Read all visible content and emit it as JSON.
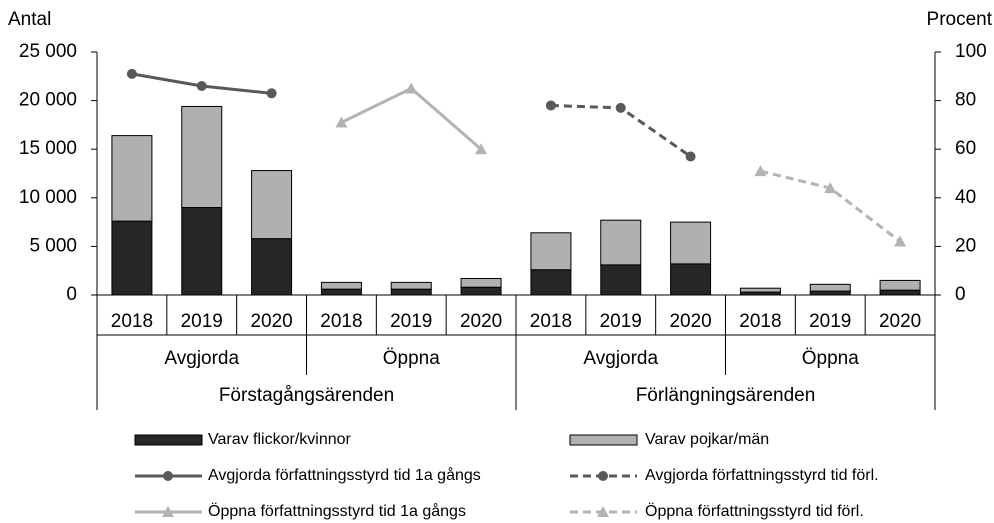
{
  "chart_data": {
    "type": "bar",
    "y_label": "Antal",
    "y2_label": "Procent",
    "categories": [
      "2018",
      "2019",
      "2020",
      "2018",
      "2019",
      "2020",
      "2018",
      "2019",
      "2020",
      "2018",
      "2019",
      "2020"
    ],
    "groups": [
      "Avgjorda",
      "Öppna",
      "Avgjorda",
      "Öppna"
    ],
    "supergroups": [
      "Förstagångsärenden",
      "Förlängningsärenden"
    ],
    "ylim": [
      0,
      25000
    ],
    "yticks": [
      {
        "value": 0,
        "label": "0"
      },
      {
        "value": 5000,
        "label": "5 000"
      },
      {
        "value": 10000,
        "label": "10 000"
      },
      {
        "value": 15000,
        "label": "15 000"
      },
      {
        "value": 20000,
        "label": "20 000"
      },
      {
        "value": 25000,
        "label": "25 000"
      }
    ],
    "y2lim": [
      0,
      100
    ],
    "y2ticks": [
      0,
      20,
      40,
      60,
      80,
      100
    ],
    "series": [
      {
        "name": "Varav flickor/kvinnor",
        "type": "bar",
        "color": "#262626",
        "values": [
          7600,
          9000,
          5800,
          600,
          600,
          800,
          2600,
          3100,
          3200,
          300,
          400,
          500
        ]
      },
      {
        "name": "Varav pojkar/män",
        "type": "bar",
        "color": "#b0b0b0",
        "values": [
          8800,
          10400,
          7000,
          700,
          700,
          900,
          3800,
          4600,
          4300,
          400,
          700,
          1000
        ]
      },
      {
        "name": "Avgjorda författningsstyrd tid 1a gångs",
        "type": "line",
        "axis": "y2",
        "color": "#595959",
        "dashed": false,
        "marker": "circle",
        "values": [
          91,
          86,
          83,
          null,
          null,
          null,
          null,
          null,
          null,
          null,
          null,
          null
        ]
      },
      {
        "name": "Avgjorda författningsstyrd tid förl.",
        "type": "line",
        "axis": "y2",
        "color": "#595959",
        "dashed": true,
        "marker": "circle",
        "values": [
          null,
          null,
          null,
          null,
          null,
          null,
          78,
          77,
          57,
          null,
          null,
          null
        ]
      },
      {
        "name": "Öppna författningsstyrd tid 1a gångs",
        "type": "line",
        "axis": "y2",
        "color": "#b3b3b3",
        "dashed": false,
        "marker": "triangle",
        "values": [
          null,
          null,
          null,
          71,
          85,
          60,
          null,
          null,
          null,
          null,
          null,
          null
        ]
      },
      {
        "name": "Öppna författningsstyrd tid förl.",
        "type": "line",
        "axis": "y2",
        "color": "#b3b3b3",
        "dashed": true,
        "marker": "triangle",
        "values": [
          null,
          null,
          null,
          null,
          null,
          null,
          null,
          null,
          null,
          51,
          44,
          22
        ]
      }
    ]
  }
}
